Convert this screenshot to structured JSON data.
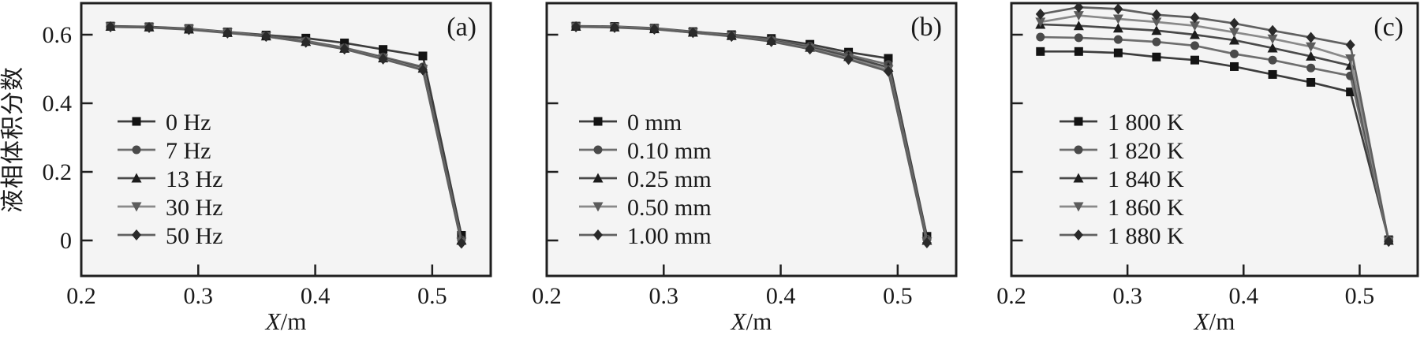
{
  "figure": {
    "y_axis_label": "液相体积分数",
    "background_color": "#ffffff",
    "plot_background_color": "#f4f4f4",
    "frame_color": "#1f1f1f",
    "text_color": "#1a1a1a"
  },
  "chart_data": [
    {
      "type": "line",
      "panel_label": "(a)",
      "xlabel_italic": "X",
      "xlabel_rest": "/m",
      "ylabel": "液相体积分数",
      "xlim": [
        0.2,
        0.55
      ],
      "ylim": [
        -0.1,
        0.69
      ],
      "grid": false,
      "legend_position": "lower-left",
      "x_tick_values": [
        0.2,
        0.3,
        0.4,
        0.5
      ],
      "x_tick_labels": [
        "0.2",
        "0.3",
        "0.4",
        "0.5"
      ],
      "y_tick_values": [
        0,
        0.2,
        0.4,
        0.6
      ],
      "y_tick_labels": [
        "0",
        "0.2",
        "0.4",
        "0.6"
      ],
      "show_y_tick_labels": true,
      "x": [
        0.225,
        0.258,
        0.292,
        0.325,
        0.358,
        0.392,
        0.425,
        0.458,
        0.492,
        0.525
      ],
      "series": [
        {
          "name": "0 Hz",
          "marker": "square",
          "marker_color": "#131313",
          "line_color": "#3d3d3d",
          "values": [
            0.625,
            0.623,
            0.618,
            0.608,
            0.599,
            0.59,
            0.576,
            0.557,
            0.538,
            0.015
          ]
        },
        {
          "name": "7 Hz",
          "marker": "circle",
          "marker_color": "#4a4a4a",
          "line_color": "#6e6e6e",
          "values": [
            0.624,
            0.622,
            0.617,
            0.607,
            0.597,
            0.582,
            0.562,
            0.535,
            0.506,
            0.002
          ]
        },
        {
          "name": "13 Hz",
          "marker": "triangle-up",
          "marker_color": "#1c1c1c",
          "line_color": "#4a4a4a",
          "values": [
            0.624,
            0.622,
            0.616,
            0.606,
            0.596,
            0.58,
            0.56,
            0.532,
            0.502,
            0.0
          ]
        },
        {
          "name": "30 Hz",
          "marker": "triangle-down",
          "marker_color": "#5c5c5c",
          "line_color": "#8a8a8a",
          "values": [
            0.623,
            0.621,
            0.616,
            0.606,
            0.595,
            0.579,
            0.559,
            0.53,
            0.499,
            -0.005
          ]
        },
        {
          "name": "50 Hz",
          "marker": "diamond",
          "marker_color": "#2a2a2a",
          "line_color": "#606060",
          "values": [
            0.623,
            0.621,
            0.615,
            0.605,
            0.595,
            0.578,
            0.558,
            0.529,
            0.497,
            -0.008
          ]
        }
      ]
    },
    {
      "type": "line",
      "panel_label": "(b)",
      "xlabel_italic": "X",
      "xlabel_rest": "/m",
      "ylabel": "",
      "xlim": [
        0.2,
        0.55
      ],
      "ylim": [
        -0.1,
        0.69
      ],
      "grid": false,
      "legend_position": "lower-left",
      "x_tick_values": [
        0.2,
        0.3,
        0.4,
        0.5
      ],
      "x_tick_labels": [
        "0.2",
        "0.3",
        "0.4",
        "0.5"
      ],
      "y_tick_values": [
        0,
        0.2,
        0.4,
        0.6
      ],
      "y_tick_labels": null,
      "show_y_tick_labels": false,
      "x": [
        0.225,
        0.258,
        0.292,
        0.325,
        0.358,
        0.392,
        0.425,
        0.458,
        0.492,
        0.525
      ],
      "series": [
        {
          "name": "0 mm",
          "marker": "square",
          "marker_color": "#131313",
          "line_color": "#3d3d3d",
          "values": [
            0.625,
            0.624,
            0.619,
            0.609,
            0.6,
            0.589,
            0.572,
            0.549,
            0.531,
            0.012
          ]
        },
        {
          "name": "0.10 mm",
          "marker": "circle",
          "marker_color": "#4a4a4a",
          "line_color": "#6e6e6e",
          "values": [
            0.624,
            0.623,
            0.618,
            0.608,
            0.598,
            0.585,
            0.566,
            0.541,
            0.513,
            0.004
          ]
        },
        {
          "name": "0.25 mm",
          "marker": "triangle-up",
          "marker_color": "#1c1c1c",
          "line_color": "#4a4a4a",
          "values": [
            0.624,
            0.622,
            0.617,
            0.607,
            0.597,
            0.583,
            0.563,
            0.536,
            0.505,
            0.0
          ]
        },
        {
          "name": "0.50 mm",
          "marker": "triangle-down",
          "marker_color": "#5c5c5c",
          "line_color": "#8a8a8a",
          "values": [
            0.623,
            0.622,
            0.617,
            0.606,
            0.596,
            0.581,
            0.56,
            0.531,
            0.498,
            -0.004
          ]
        },
        {
          "name": "1.00 mm",
          "marker": "diamond",
          "marker_color": "#2a2a2a",
          "line_color": "#606060",
          "values": [
            0.623,
            0.621,
            0.616,
            0.606,
            0.595,
            0.58,
            0.558,
            0.528,
            0.493,
            -0.007
          ]
        }
      ]
    },
    {
      "type": "line",
      "panel_label": "(c)",
      "xlabel_italic": "X",
      "xlabel_rest": "/m",
      "ylabel": "",
      "xlim": [
        0.2,
        0.55
      ],
      "ylim": [
        -0.1,
        0.69
      ],
      "grid": false,
      "legend_position": "lower-left",
      "x_tick_values": [
        0.2,
        0.3,
        0.4,
        0.5
      ],
      "x_tick_labels": [
        "0.2",
        "0.3",
        "0.4",
        "0.5"
      ],
      "y_tick_values": [
        0,
        0.2,
        0.4,
        0.6
      ],
      "y_tick_labels": null,
      "show_y_tick_labels": false,
      "x": [
        0.225,
        0.258,
        0.292,
        0.325,
        0.358,
        0.392,
        0.425,
        0.458,
        0.492,
        0.525
      ],
      "series": [
        {
          "name": "1 800 K",
          "marker": "square",
          "marker_color": "#131313",
          "line_color": "#3d3d3d",
          "values": [
            0.551,
            0.551,
            0.547,
            0.535,
            0.526,
            0.507,
            0.484,
            0.461,
            0.433,
            0.002
          ]
        },
        {
          "name": "1 820 K",
          "marker": "circle",
          "marker_color": "#4a4a4a",
          "line_color": "#6e6e6e",
          "values": [
            0.593,
            0.591,
            0.586,
            0.579,
            0.568,
            0.544,
            0.526,
            0.503,
            0.48,
            0.001
          ]
        },
        {
          "name": "1 840 K",
          "marker": "triangle-up",
          "marker_color": "#1c1c1c",
          "line_color": "#4a4a4a",
          "values": [
            0.63,
            0.626,
            0.619,
            0.612,
            0.6,
            0.584,
            0.561,
            0.537,
            0.51,
            0.0
          ]
        },
        {
          "name": "1 860 K",
          "marker": "triangle-down",
          "marker_color": "#5c5c5c",
          "line_color": "#8a8a8a",
          "values": [
            0.637,
            0.656,
            0.646,
            0.637,
            0.626,
            0.607,
            0.588,
            0.565,
            0.53,
            -0.002
          ]
        },
        {
          "name": "1 880 K",
          "marker": "diamond",
          "marker_color": "#2a2a2a",
          "line_color": "#606060",
          "values": [
            0.66,
            0.68,
            0.675,
            0.658,
            0.65,
            0.633,
            0.612,
            0.592,
            0.57,
            -0.003
          ]
        }
      ]
    }
  ]
}
